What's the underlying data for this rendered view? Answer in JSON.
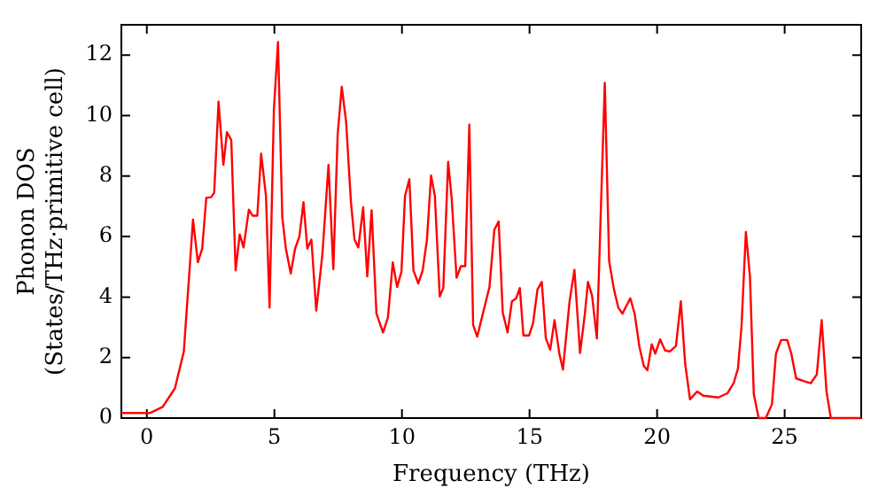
{
  "chart_data": {
    "type": "line",
    "xlabel": "Frequency (THz)",
    "ylabel": "Phonon DOS\n(States/THz·primitive cell)",
    "x": [
      -1,
      0.14,
      0.62,
      1.1,
      1.45,
      1.81,
      2.0,
      2.17,
      2.33,
      2.52,
      2.64,
      2.81,
      3.0,
      3.14,
      3.31,
      3.48,
      3.64,
      3.79,
      4.0,
      4.14,
      4.33,
      4.48,
      4.67,
      4.81,
      4.98,
      5.14,
      5.31,
      5.45,
      5.64,
      5.81,
      5.98,
      6.14,
      6.29,
      6.45,
      6.64,
      6.88,
      7.12,
      7.31,
      7.48,
      7.64,
      7.81,
      8.0,
      8.14,
      8.29,
      8.48,
      8.64,
      8.81,
      9.0,
      9.26,
      9.45,
      9.64,
      9.81,
      9.98,
      10.12,
      10.29,
      10.45,
      10.64,
      10.81,
      10.98,
      11.14,
      11.29,
      11.48,
      11.62,
      11.81,
      11.95,
      12.14,
      12.31,
      12.48,
      12.64,
      12.79,
      12.95,
      13.17,
      13.43,
      13.62,
      13.79,
      13.95,
      14.14,
      14.31,
      14.48,
      14.62,
      14.76,
      14.98,
      15.14,
      15.31,
      15.48,
      15.64,
      15.81,
      15.98,
      16.17,
      16.31,
      16.57,
      16.76,
      16.98,
      17.17,
      17.29,
      17.45,
      17.64,
      17.95,
      18.12,
      18.31,
      18.48,
      18.64,
      18.95,
      19.12,
      19.31,
      19.48,
      19.62,
      19.79,
      19.93,
      20.12,
      20.31,
      20.5,
      20.74,
      20.93,
      21.1,
      21.29,
      21.57,
      21.81,
      22.4,
      22.76,
      23.0,
      23.17,
      23.31,
      23.48,
      23.64,
      23.79,
      23.98,
      24.26,
      24.5,
      24.66,
      24.86,
      25.1,
      25.26,
      25.45,
      25.79,
      26.02,
      26.26,
      26.45,
      26.64,
      26.81,
      28
    ],
    "series": [
      {
        "color": "#ff0000",
        "values": [
          0.17,
          0.17,
          0.37,
          0.98,
          2.2,
          6.56,
          5.15,
          5.6,
          7.28,
          7.3,
          7.45,
          10.46,
          8.37,
          9.45,
          9.19,
          4.88,
          6.07,
          5.64,
          6.89,
          6.69,
          6.69,
          8.74,
          7.34,
          3.65,
          10.2,
          12.43,
          6.63,
          5.6,
          4.78,
          5.6,
          6.0,
          7.14,
          5.6,
          5.9,
          3.55,
          5.4,
          8.37,
          4.92,
          9.39,
          10.95,
          9.8,
          7.14,
          5.9,
          5.64,
          6.97,
          4.68,
          6.87,
          3.45,
          2.83,
          3.33,
          5.15,
          4.33,
          4.84,
          7.34,
          7.9,
          4.88,
          4.45,
          4.88,
          5.9,
          8.02,
          7.34,
          4.02,
          4.3,
          8.47,
          7.24,
          4.64,
          5.02,
          5.02,
          9.7,
          3.08,
          2.69,
          3.45,
          4.33,
          6.22,
          6.5,
          3.49,
          2.83,
          3.86,
          3.96,
          4.3,
          2.73,
          2.73,
          3.14,
          4.25,
          4.5,
          2.63,
          2.26,
          3.24,
          2.12,
          1.6,
          3.86,
          4.9,
          2.15,
          3.45,
          4.5,
          4.05,
          2.63,
          11.08,
          5.19,
          4.25,
          3.65,
          3.45,
          3.96,
          3.45,
          2.34,
          1.72,
          1.58,
          2.44,
          2.13,
          2.6,
          2.24,
          2.2,
          2.38,
          3.86,
          1.8,
          0.62,
          0.88,
          0.74,
          0.68,
          0.82,
          1.15,
          1.64,
          3.04,
          6.15,
          4.68,
          0.8,
          0,
          0,
          0.45,
          2.13,
          2.58,
          2.58,
          2.13,
          1.31,
          1.21,
          1.15,
          1.44,
          3.24,
          0.88,
          0,
          0
        ]
      }
    ],
    "xlim": [
      -1,
      28
    ],
    "xticks": [
      0,
      5,
      10,
      15,
      20,
      25
    ],
    "ylim": [
      0,
      13
    ],
    "yticks": [
      0,
      2,
      4,
      6,
      8,
      10,
      12
    ],
    "grid": false,
    "legend": false,
    "marker": "none",
    "line_style": "solid"
  }
}
